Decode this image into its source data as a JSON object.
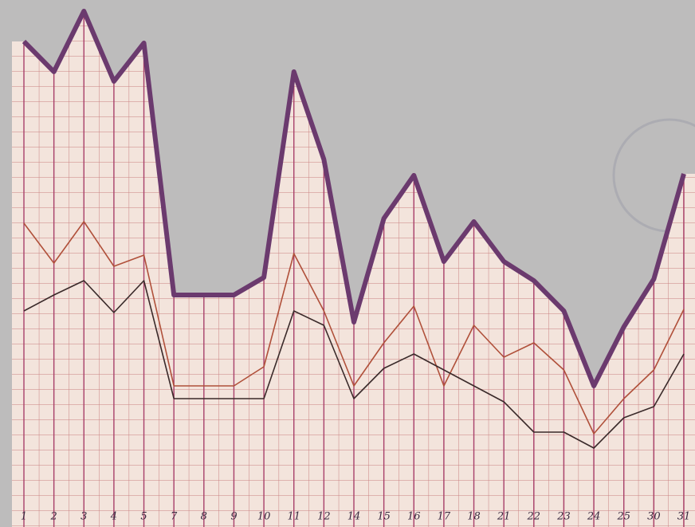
{
  "chart_data": {
    "type": "line",
    "categories": [
      "1",
      "2",
      "3",
      "4",
      "5",
      "7",
      "8",
      "9",
      "10",
      "11",
      "12",
      "14",
      "15",
      "16",
      "17",
      "18",
      "21",
      "22",
      "23",
      "24",
      "25",
      "30",
      "31"
    ],
    "series": [
      {
        "color": "#6b3a6e",
        "values": [
          29.4,
          27.5,
          31.3,
          26.9,
          29.3,
          13.5,
          13.5,
          13.5,
          14.6,
          27.5,
          22,
          11.8,
          18.3,
          21,
          15.6,
          18.1,
          15.6,
          14.4,
          12.5,
          7.8,
          11.5,
          14.5,
          21.1
        ]
      },
      {
        "color": "#b0503a",
        "values": [
          18,
          15.5,
          18.1,
          15.3,
          16,
          7.8,
          7.8,
          7.8,
          9,
          16.1,
          12.5,
          7.8,
          10.5,
          12.8,
          7.8,
          11.6,
          9.6,
          10.5,
          8.8,
          4.8,
          7,
          8.8,
          12.6
        ]
      },
      {
        "color": "#3a2a2a",
        "values": [
          12.5,
          13.5,
          14.4,
          12.4,
          14.4,
          7,
          7,
          7,
          7,
          12.5,
          11.6,
          7,
          8.9,
          9.8,
          8.8,
          7.8,
          6.8,
          4.9,
          4.9,
          3.9,
          5.8,
          6.5,
          9.8
        ]
      }
    ],
    "ylim": [
      0,
      32
    ],
    "grid": true
  }
}
